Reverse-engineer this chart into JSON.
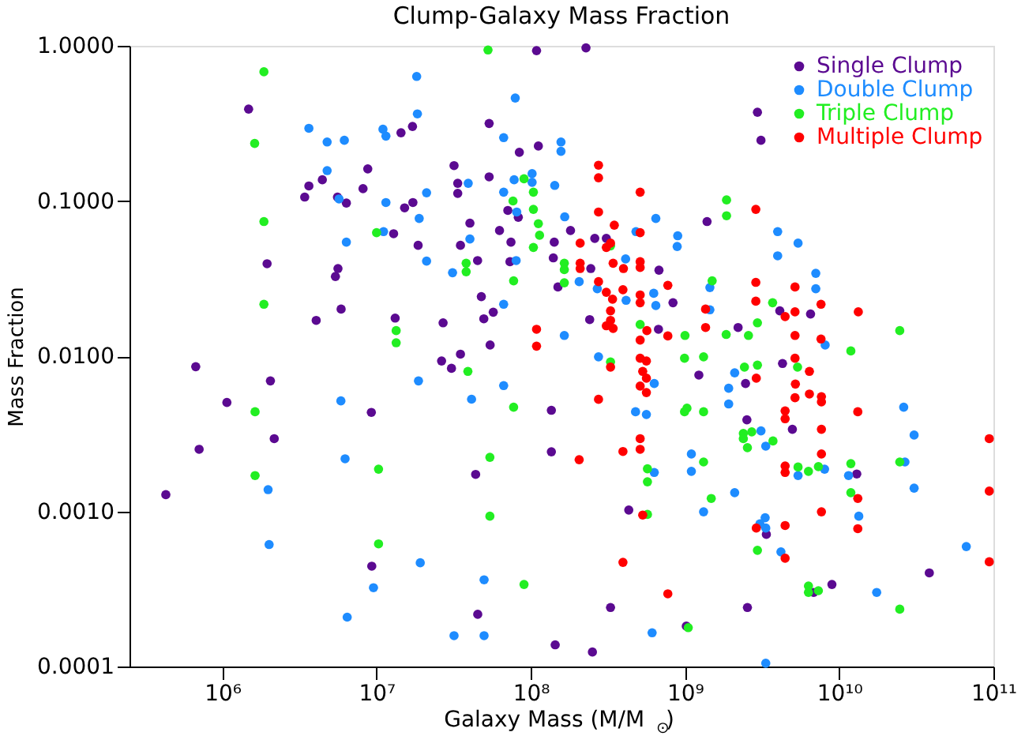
{
  "chart_data": {
    "type": "scatter",
    "title": "Clump-Galaxy Mass Fraction",
    "xlabel": "Galaxy Mass (M/M$_{⊙}$)",
    "ylabel": "Mass Fraction",
    "log": "xy",
    "marker": "circle",
    "legend": "top right",
    "xlim": [
      250000,
      100000000000
    ],
    "ylim": [
      0.0001,
      1
    ],
    "xticks": [
      {
        "value": 1000000,
        "label": "10⁶"
      },
      {
        "value": 10000000,
        "label": "10⁷"
      },
      {
        "value": 100000000,
        "label": "10⁸"
      },
      {
        "value": 1000000000,
        "label": "10⁹"
      },
      {
        "value": 10000000000,
        "label": "10¹⁰"
      },
      {
        "value": 100000000000,
        "label": "10¹¹"
      }
    ],
    "yticks": [
      {
        "value": 0.0001,
        "label": "0.0001"
      },
      {
        "value": 0.001,
        "label": "0.0010"
      },
      {
        "value": 0.01,
        "label": "0.0100"
      },
      {
        "value": 0.1,
        "label": "0.1000"
      },
      {
        "value": 1,
        "label": "1.0000"
      }
    ],
    "series": [
      {
        "name": "Single Clump",
        "color": "#5b0a91",
        "x": [
          1480000.0,
          1950000.0,
          3420000.0,
          3640000.0,
          4060000.0,
          4450000.0,
          5410000.0,
          5620000.0,
          5580000.0,
          6370000.0,
          5890000.0,
          8170000.0,
          8770000.0,
          12900000.0,
          13200000.0,
          14400000.0,
          15200000.0,
          17100000.0,
          17200000.0,
          18600000.0,
          27000000.0,
          31800000.0,
          33600000.0,
          33600000.0,
          35000000.0,
          40300000.0,
          45200000.0,
          47800000.0,
          49600000.0,
          53700000.0,
          53700000.0,
          54500000.0,
          57100000.0,
          35000000.0,
          672000.0,
          707000.0,
          1070000.0,
          2050000.0,
          2170000.0,
          430000.0,
          9250000.0,
          9310000.0,
          26400000.0,
          30600000.0,
          43900000.0,
          45300000.0,
          109000000.0,
          228000000.0,
          84300000.0,
          112000000.0,
          62700000.0,
          71000000.0,
          74400000.0,
          83000000.0,
          73300000.0,
          142000000.0,
          140000000.0,
          150000000.0,
          181000000.0,
          241000000.0,
          260000000.0,
          309000000.0,
          245000000.0,
          678000000.0,
          836000000.0,
          673000000.0,
          1390000000.0,
          2210000000.0,
          2950000000.0,
          3110000000.0,
          4120000000.0,
          6520000000.0,
          136000000.0,
          136000000.0,
          432000000.0,
          1230000000.0,
          2470000000.0,
          2520000000.0,
          4970000000.0,
          4290000000.0,
          13000000000.0,
          3370000000.0,
          6830000000.0,
          8970000000.0,
          38400000000.0,
          329000000.0,
          1020000000.0,
          2540000000.0,
          144000000.0,
          251000000.0
        ],
        "values": [
          0.391,
          0.0394,
          0.106,
          0.125,
          0.017,
          0.137,
          0.0326,
          0.0367,
          0.106,
          0.0969,
          0.0201,
          0.12,
          0.161,
          0.0615,
          0.0176,
          0.275,
          0.0903,
          0.302,
          0.0977,
          0.0518,
          0.0164,
          0.169,
          0.13,
          0.112,
          0.0518,
          0.072,
          0.0413,
          0.0242,
          0.0174,
          0.316,
          0.143,
          0.0118,
          0.0192,
          0.0103,
          0.00855,
          0.00251,
          0.00503,
          0.00693,
          0.00294,
          0.00128,
          0.00434,
          0.000443,
          0.00931,
          0.00835,
          0.00173,
          0.000217,
          0.93,
          0.97,
          0.206,
          0.226,
          0.0645,
          0.0869,
          0.0543,
          0.0785,
          0.0406,
          0.0543,
          0.043,
          0.0279,
          0.0645,
          0.0172,
          0.0574,
          0.0574,
          0.0367,
          0.0358,
          0.0221,
          0.0149,
          0.0737,
          0.0153,
          0.373,
          0.246,
          0.0196,
          0.0187,
          0.00448,
          0.00242,
          0.00102,
          0.00755,
          0.00667,
          0.00389,
          0.00338,
          0.00897,
          0.00174,
          0.00071,
          0.0003,
          0.000338,
          0.000401,
          0.00024,
          0.000182,
          0.00024,
          0.000138,
          0.000124
        ]
      },
      {
        "name": "Double Clump",
        "color": "#1e8cff",
        "x": [
          3640000.0,
          4780000.0,
          6180000.0,
          4780000.0,
          5710000.0,
          6370000.0,
          11000000.0,
          11500000.0,
          11500000.0,
          11100000.0,
          18200000.0,
          18400000.0,
          18900000.0,
          21100000.0,
          21100000.0,
          31100000.0,
          39300000.0,
          40300000.0,
          1980000.0,
          2010000.0,
          5870000.0,
          6250000.0,
          6450000.0,
          9550000.0,
          18700000.0,
          19200000.0,
          31800000.0,
          41300000.0,
          49800000.0,
          49800000.0,
          79300000.0,
          66700000.0,
          157000000.0,
          157000000.0,
          102000000.0,
          102000000.0,
          78000000.0,
          66700000.0,
          143000000.0,
          81100000.0,
          80400000.0,
          166000000.0,
          206000000.0,
          66700000.0,
          270000000.0,
          165000000.0,
          412000000.0,
          481000000.0,
          647000000.0,
          897000000.0,
          890000000.0,
          627000000.0,
          647000000.0,
          415000000.0,
          1450000000.0,
          1450000000.0,
          3990000000.0,
          3990000000.0,
          5410000000.0,
          7050000000.0,
          7050000000.0,
          8110000000.0,
          66700000.0,
          275000000.0,
          632000000.0,
          562000000.0,
          478000000.0,
          1920000000.0,
          2100000000.0,
          1920000000.0,
          1100000000.0,
          1100000000.0,
          632000000.0,
          2100000000.0,
          1320000000.0,
          3110000000.0,
          3340000000.0,
          3310000000.0,
          3060000000.0,
          3340000000.0,
          4190000000.0,
          5410000000.0,
          8040000000.0,
          11500000000.0,
          13400000000.0,
          26200000000.0,
          30600000000.0,
          30600000000.0,
          26700000000.0,
          66700000000.0,
          17500000000.0,
          612000000.0,
          3340000000.0
        ],
        "values": [
          0.294,
          0.24,
          0.246,
          0.157,
          0.103,
          0.0543,
          0.29,
          0.262,
          0.0977,
          0.0635,
          0.635,
          0.364,
          0.0772,
          0.113,
          0.041,
          0.0345,
          0.13,
          0.0569,
          0.00138,
          0.000611,
          0.00515,
          0.00218,
          0.000208,
          0.000322,
          0.00693,
          0.000466,
          0.000158,
          0.00528,
          0.000362,
          0.000158,
          0.461,
          0.256,
          0.24,
          0.209,
          0.15,
          0.132,
          0.137,
          0.114,
          0.126,
          0.0849,
          0.0413,
          0.0791,
          0.0302,
          0.0216,
          0.0272,
          0.0136,
          0.0423,
          0.0635,
          0.0772,
          0.0597,
          0.0509,
          0.0254,
          0.0212,
          0.0229,
          0.0277,
          0.0199,
          0.0635,
          0.0443,
          0.0535,
          0.0342,
          0.0272,
          0.0118,
          0.00646,
          0.0099,
          0.00667,
          0.00421,
          0.00438,
          0.00621,
          0.0078,
          0.00492,
          0.00234,
          0.00181,
          0.00178,
          0.00132,
          0.000993,
          0.0033,
          0.00263,
          0.00091,
          0.00083,
          0.00078,
          0.000548,
          0.0017,
          0.00187,
          0.0017,
          0.00093,
          0.00469,
          0.0031,
          0.00141,
          0.00208,
          0.000593,
          0.0003,
          0.000165,
          0.000105
        ]
      },
      {
        "name": "Triple Clump",
        "color": "#22ee22",
        "x": [
          1860000.0,
          1620000.0,
          1860000.0,
          1860000.0,
          10000000.0,
          13400000.0,
          13400000.0,
          38100000.0,
          38100000.0,
          52800000.0,
          1630000.0,
          1630000.0,
          10300000.0,
          10300000.0,
          39100000.0,
          54300000.0,
          54300000.0,
          90400000.0,
          76700000.0,
          104000000.0,
          104000000.0,
          112000000.0,
          114000000.0,
          77400000.0,
          104000000.0,
          165000000.0,
          165000000.0,
          165000000.0,
          329000000.0,
          1500000000.0,
          1860000000.0,
          1860000000.0,
          3700000000.0,
          2950000000.0,
          1850000000.0,
          2580000000.0,
          1000000000.0,
          512000000.0,
          24700000000.0,
          11900000000.0,
          329000000.0,
          993000000.0,
          1320000000.0,
          2430000000.0,
          2950000000.0,
          77400000.0,
          993000000.0,
          1030000000.0,
          1320000000.0,
          2390000000.0,
          2390000000.0,
          2710000000.0,
          2540000000.0,
          3720000000.0,
          5370000000.0,
          571000000.0,
          571000000.0,
          1320000000.0,
          1480000000.0,
          5410000000.0,
          6320000000.0,
          7330000000.0,
          11900000000.0,
          11900000000.0,
          24700000000.0,
          571000000.0,
          2950000000.0,
          6320000000.0,
          6320000000.0,
          7330000000.0,
          24700000000.0,
          90400000.0,
          1050000000.0
        ],
        "values": [
          0.68,
          0.235,
          0.0737,
          0.0216,
          0.0625,
          0.0146,
          0.0122,
          0.0397,
          0.035,
          0.94,
          0.00438,
          0.0017,
          0.00187,
          0.000617,
          0.00798,
          0.00223,
          0.00093,
          0.139,
          0.1,
          0.114,
          0.0883,
          0.0714,
          0.0601,
          0.0306,
          0.0502,
          0.0397,
          0.0361,
          0.0297,
          0.0514,
          0.0306,
          0.1016,
          0.0803,
          0.0221,
          0.0164,
          0.0138,
          0.0136,
          0.0136,
          0.016,
          0.0146,
          0.0108,
          0.00918,
          0.0097,
          0.0099,
          0.0085,
          0.00876,
          0.00469,
          0.00438,
          0.00462,
          0.00438,
          0.00318,
          0.00294,
          0.00325,
          0.00257,
          0.00284,
          0.0085,
          0.00188,
          0.00155,
          0.00208,
          0.00121,
          0.00193,
          0.00181,
          0.00194,
          0.00203,
          0.00132,
          0.00208,
          0.000955,
          0.000561,
          0.00033,
          0.0003,
          0.000308,
          0.000234,
          0.000338,
          0.000178
        ]
      },
      {
        "name": "Multiple Clump",
        "color": "#ff0000",
        "x": [
          275000000.0,
          275000000.0,
          275000000.0,
          512000000.0,
          512000000.0,
          348000000.0,
          209000000.0,
          329000000.0,
          309000000.0,
          342000000.0,
          209000000.0,
          209000000.0,
          399000000.0,
          512000000.0,
          512000000.0,
          275000000.0,
          309000000.0,
          339000000.0,
          396000000.0,
          512000000.0,
          512000000.0,
          329000000.0,
          329000000.0,
          309000000.0,
          342000000.0,
          109000000.0,
          109000000.0,
          566000000.0,
          512000000.0,
          774000000.0,
          774000000.0,
          1360000000.0,
          1360000000.0,
          2880000000.0,
          2880000000.0,
          2880000000.0,
          4460000000.0,
          5170000000.0,
          5170000000.0,
          5170000000.0,
          7620000000.0,
          7620000000.0,
          13300000000.0,
          512000000.0,
          562000000.0,
          329000000.0,
          532000000.0,
          562000000.0,
          512000000.0,
          562000000.0,
          275000000.0,
          396000000.0,
          512000000.0,
          512000000.0,
          206000000.0,
          532000000.0,
          396000000.0,
          774000000.0,
          2900000000.0,
          2900000000.0,
          4460000000.0,
          4460000000.0,
          4460000000.0,
          4460000000.0,
          5170000000.0,
          5200000000.0,
          5170000000.0,
          6410000000.0,
          6410000000.0,
          7670000000.0,
          7670000000.0,
          7670000000.0,
          7670000000.0,
          7670000000.0,
          4460000000.0,
          4460000000.0,
          13200000000.0,
          13200000000.0,
          13200000000.0,
          94000000000.0,
          94000000000.0,
          94000000000.0
        ],
        "values": [
          0.17,
          0.141,
          0.0849,
          0.114,
          0.0625,
          0.0698,
          0.0535,
          0.0535,
          0.0502,
          0.0397,
          0.0397,
          0.0367,
          0.0367,
          0.0406,
          0.0373,
          0.0302,
          0.0258,
          0.0233,
          0.0268,
          0.0248,
          0.0221,
          0.0196,
          0.017,
          0.0157,
          0.0151,
          0.0149,
          0.0116,
          0.0146,
          0.0127,
          0.0286,
          0.0135,
          0.0201,
          0.0153,
          0.0883,
          0.0299,
          0.0226,
          0.018,
          0.0279,
          0.0193,
          0.0136,
          0.0216,
          0.0129,
          0.0193,
          0.0097,
          0.0093,
          0.0085,
          0.00798,
          0.00721,
          0.00641,
          0.00583,
          0.00527,
          0.00243,
          0.00294,
          0.00251,
          0.00215,
          0.000946,
          0.000469,
          0.000294,
          0.00721,
          0.00078,
          0.00444,
          0.00395,
          0.00196,
          0.00178,
          0.0097,
          0.00661,
          0.0054,
          0.00798,
          0.0057,
          0.00548,
          0.00507,
          0.00338,
          0.00234,
          0.000993,
          0.00081,
          0.000499,
          0.00438,
          0.00121,
          0.000773,
          0.00294,
          0.00135,
          0.000473
        ]
      }
    ]
  }
}
